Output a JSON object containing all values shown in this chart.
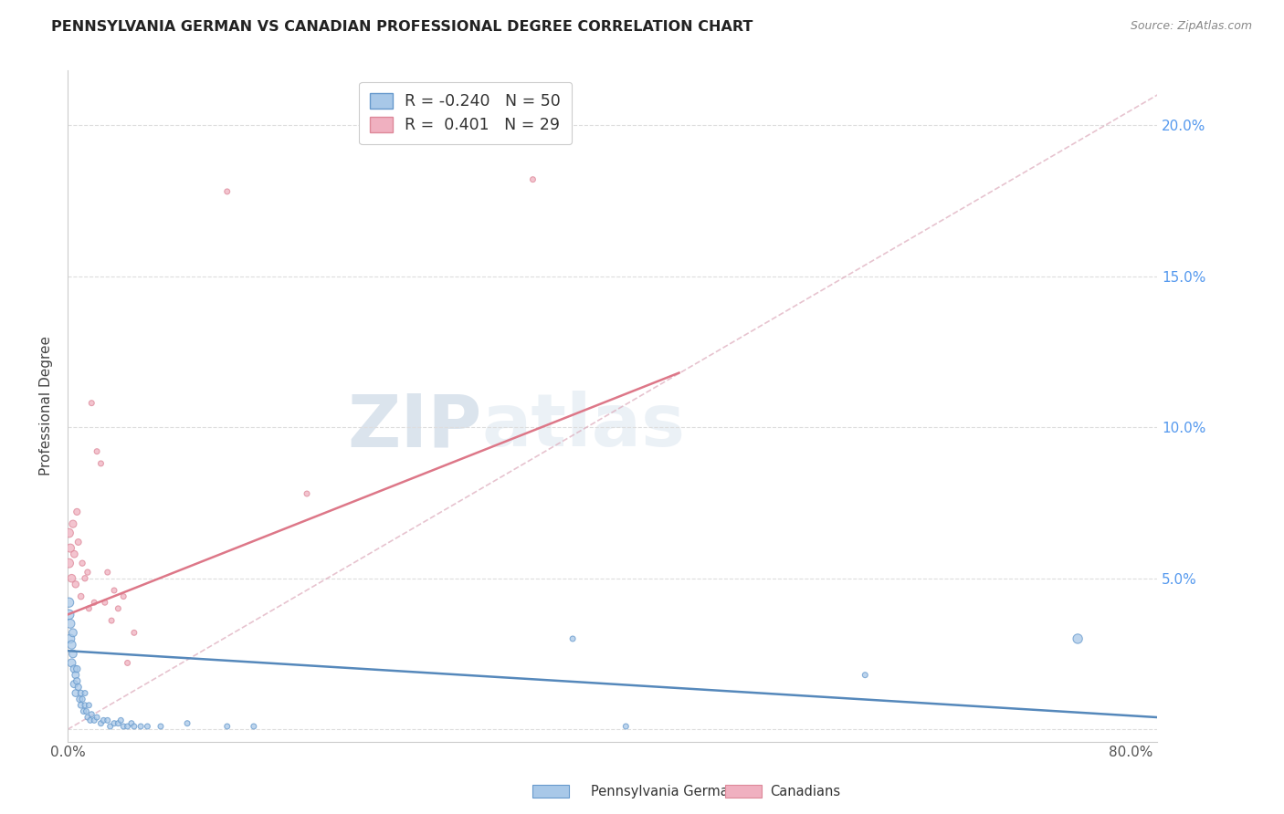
{
  "title": "PENNSYLVANIA GERMAN VS CANADIAN PROFESSIONAL DEGREE CORRELATION CHART",
  "source": "Source: ZipAtlas.com",
  "ylabel": "Professional Degree",
  "watermark_zip": "ZIP",
  "watermark_atlas": "atlas",
  "bg_color": "#ffffff",
  "grid_color": "#dddddd",
  "blue_color": "#a8c8e8",
  "pink_color": "#f0b0c0",
  "blue_edge_color": "#6699cc",
  "pink_edge_color": "#dd8899",
  "blue_line_color": "#5588bb",
  "pink_line_color": "#dd7788",
  "dashed_line_color": "#ddaabb",
  "right_axis_color": "#5599ee",
  "legend_r_blue": "-0.240",
  "legend_n_blue": "50",
  "legend_r_pink": "0.401",
  "legend_n_pink": "29",
  "legend_label_blue": "Pennsylvania Germans",
  "legend_label_pink": "Canadians",
  "xmin": 0.0,
  "xmax": 0.82,
  "ymin": -0.004,
  "ymax": 0.218,
  "blue_scatter_x": [
    0.001,
    0.001,
    0.002,
    0.002,
    0.003,
    0.003,
    0.004,
    0.004,
    0.005,
    0.005,
    0.006,
    0.006,
    0.007,
    0.007,
    0.008,
    0.009,
    0.01,
    0.01,
    0.011,
    0.012,
    0.013,
    0.013,
    0.014,
    0.015,
    0.016,
    0.017,
    0.018,
    0.02,
    0.022,
    0.025,
    0.027,
    0.03,
    0.032,
    0.035,
    0.038,
    0.04,
    0.042,
    0.045,
    0.048,
    0.05,
    0.055,
    0.06,
    0.07,
    0.09,
    0.12,
    0.14,
    0.38,
    0.42,
    0.6,
    0.76
  ],
  "blue_scatter_y": [
    0.038,
    0.042,
    0.035,
    0.03,
    0.028,
    0.022,
    0.032,
    0.025,
    0.02,
    0.015,
    0.018,
    0.012,
    0.016,
    0.02,
    0.014,
    0.01,
    0.012,
    0.008,
    0.01,
    0.006,
    0.008,
    0.012,
    0.006,
    0.004,
    0.008,
    0.003,
    0.005,
    0.003,
    0.004,
    0.002,
    0.003,
    0.003,
    0.001,
    0.002,
    0.002,
    0.003,
    0.001,
    0.001,
    0.002,
    0.001,
    0.001,
    0.001,
    0.001,
    0.002,
    0.001,
    0.001,
    0.03,
    0.001,
    0.018,
    0.03
  ],
  "blue_scatter_size": [
    60,
    55,
    50,
    48,
    45,
    42,
    40,
    38,
    36,
    34,
    32,
    30,
    28,
    28,
    26,
    24,
    22,
    22,
    20,
    20,
    18,
    18,
    18,
    18,
    18,
    18,
    18,
    18,
    18,
    18,
    18,
    18,
    18,
    18,
    18,
    18,
    18,
    18,
    18,
    18,
    18,
    18,
    18,
    18,
    18,
    18,
    18,
    18,
    18,
    55
  ],
  "pink_scatter_x": [
    0.001,
    0.001,
    0.002,
    0.003,
    0.004,
    0.005,
    0.006,
    0.007,
    0.008,
    0.01,
    0.011,
    0.013,
    0.015,
    0.016,
    0.018,
    0.02,
    0.022,
    0.025,
    0.028,
    0.03,
    0.033,
    0.035,
    0.038,
    0.042,
    0.045,
    0.05,
    0.12,
    0.18,
    0.35
  ],
  "pink_scatter_y": [
    0.055,
    0.065,
    0.06,
    0.05,
    0.068,
    0.058,
    0.048,
    0.072,
    0.062,
    0.044,
    0.055,
    0.05,
    0.052,
    0.04,
    0.108,
    0.042,
    0.092,
    0.088,
    0.042,
    0.052,
    0.036,
    0.046,
    0.04,
    0.044,
    0.022,
    0.032,
    0.178,
    0.078,
    0.182
  ],
  "pink_scatter_size": [
    50,
    48,
    42,
    38,
    34,
    30,
    28,
    26,
    24,
    22,
    20,
    20,
    20,
    18,
    18,
    18,
    18,
    18,
    18,
    18,
    18,
    18,
    18,
    18,
    18,
    18,
    18,
    18,
    18
  ],
  "blue_trendline_x": [
    0.0,
    0.82
  ],
  "blue_trendline_y": [
    0.026,
    0.004
  ],
  "pink_trendline_x": [
    0.0,
    0.46
  ],
  "pink_trendline_y": [
    0.038,
    0.118
  ],
  "dashed_trendline_x": [
    0.0,
    0.82
  ],
  "dashed_trendline_y": [
    0.0,
    0.21
  ],
  "yticks": [
    0.0,
    0.05,
    0.1,
    0.15,
    0.2
  ],
  "ytick_labels_right": [
    "",
    "5.0%",
    "10.0%",
    "15.0%",
    "20.0%"
  ],
  "xticks": [
    0.0,
    0.1,
    0.2,
    0.3,
    0.4,
    0.5,
    0.6,
    0.7,
    0.8
  ],
  "xtick_labels": [
    "0.0%",
    "",
    "",
    "",
    "",
    "",
    "",
    "",
    "80.0%"
  ]
}
